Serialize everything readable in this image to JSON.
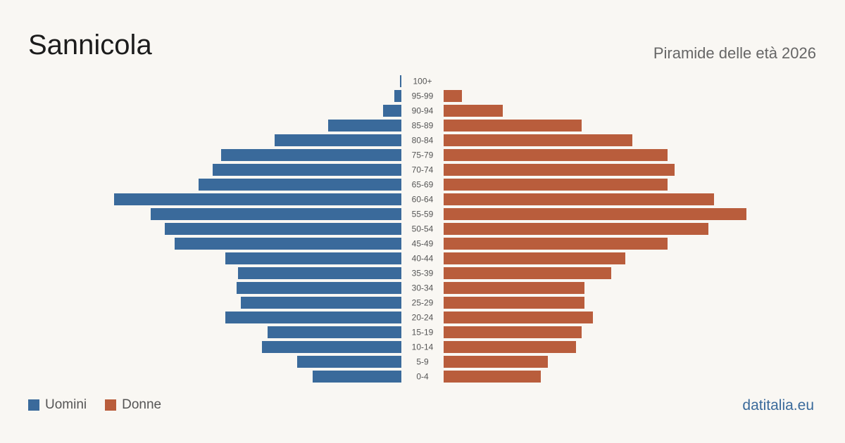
{
  "header": {
    "title": "Sannicola",
    "subtitle": "Piramide delle età 2026"
  },
  "legend": {
    "men_label": "Uomini",
    "women_label": "Donne"
  },
  "footer": {
    "source": "datitalia.eu"
  },
  "colors": {
    "men": "#3a6a9b",
    "women": "#b95d3c",
    "background": "#f9f7f3"
  },
  "chart_data": {
    "type": "bar",
    "orientation": "horizontal-pyramid",
    "categories": [
      "100+",
      "95-99",
      "90-94",
      "85-89",
      "80-84",
      "75-79",
      "70-74",
      "65-69",
      "60-64",
      "55-59",
      "50-54",
      "45-49",
      "40-44",
      "35-39",
      "30-34",
      "25-29",
      "20-24",
      "15-19",
      "10-14",
      "5-9",
      "0-4"
    ],
    "series": [
      {
        "name": "Uomini",
        "values": [
          1,
          5,
          13,
          52,
          90,
          128,
          134,
          144,
          204,
          178,
          168,
          161,
          125,
          116,
          117,
          114,
          125,
          95,
          99,
          74,
          63
        ]
      },
      {
        "name": "Donne",
        "values": [
          0,
          13,
          42,
          98,
          134,
          159,
          164,
          159,
          192,
          215,
          188,
          159,
          129,
          119,
          100,
          100,
          106,
          98,
          94,
          74,
          69
        ]
      }
    ],
    "xlim": [
      0,
      215
    ]
  }
}
